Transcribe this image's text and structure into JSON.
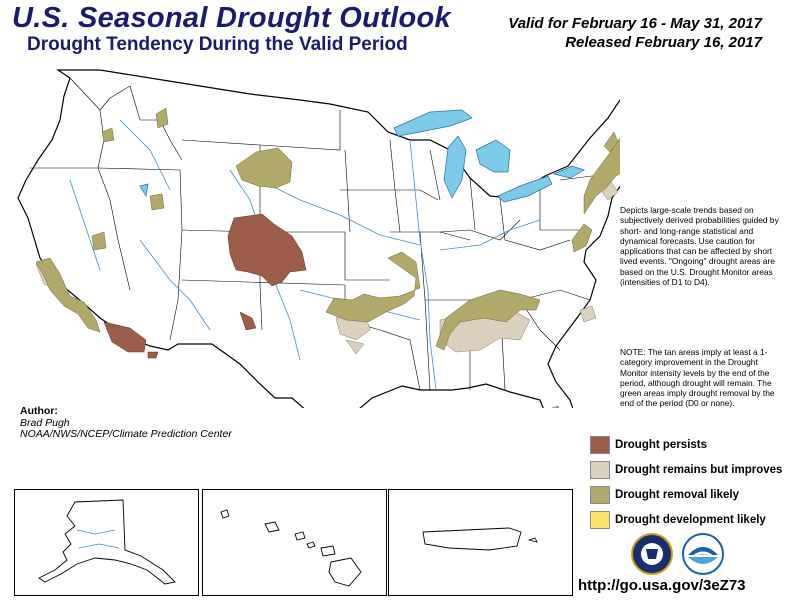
{
  "header": {
    "title": "U.S. Seasonal Drought Outlook",
    "subtitle": "Drought Tendency During the Valid Period",
    "valid_line": "Valid for February 16 - May 31, 2017",
    "released_line": "Released February 16, 2017"
  },
  "description": "Depicts large-scale trends based on subjectively derived probabilities guided by short- and long-range statistical and dynamical forecasts. Use caution for applications that can be affected by short lived events. \"Ongoing\" drought areas are based on the U.S. Drought Monitor areas (intensities of D1 to D4).",
  "note": "NOTE: The tan areas imply at least a 1-category improvement in the Drought Monitor intensity levels by the end of the period, although drought will remain. The green areas imply drought removal by the end of the period (D0 or none).",
  "author": {
    "heading": "Author:",
    "name": "Brad Pugh",
    "org": "NOAA/NWS/NCEP/Climate Prediction Center"
  },
  "legend": [
    {
      "label": "Drought persists",
      "color": "#9c5c47"
    },
    {
      "label": "Drought remains but improves",
      "color": "#dbcfbd"
    },
    {
      "label": "Drought removal likely",
      "color": "#b0a96a"
    },
    {
      "label": "Drought development likely",
      "color": "#fde26a"
    }
  ],
  "colors": {
    "persists": "#9c5c47",
    "improves": "#dbcfbd",
    "removal": "#b0a96a",
    "development": "#fde26a",
    "water": "#7ccbea",
    "border": "#000000",
    "title": "#1a1a6e"
  },
  "insets": [
    "Alaska",
    "Hawaii",
    "Puerto Rico"
  ],
  "logos": [
    "doc-seal-icon",
    "noaa-logo-icon"
  ],
  "url": "http://go.usa.gov/3eZ73"
}
